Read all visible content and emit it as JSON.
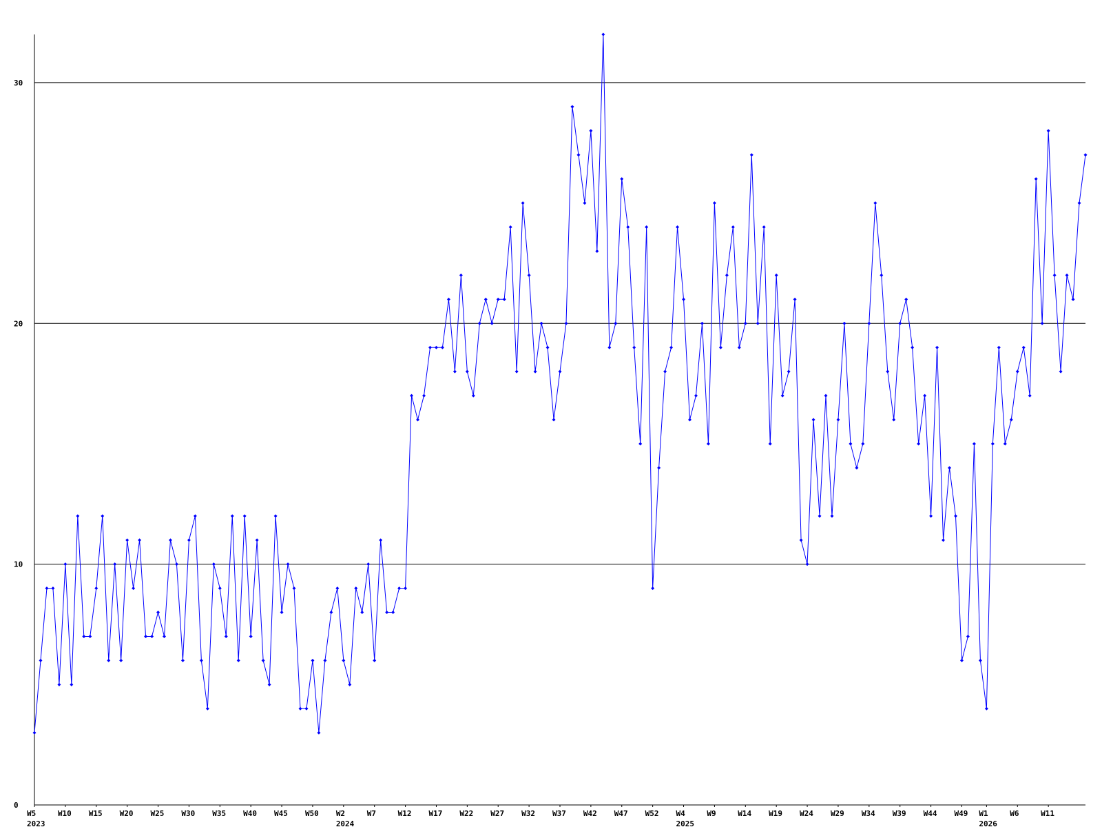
{
  "chart_data": {
    "type": "line",
    "title": "",
    "xlabel": "",
    "ylabel": "",
    "ylim": [
      0,
      32
    ],
    "y_ticks": [
      0,
      10,
      20,
      30
    ],
    "grid": "horizontal lines at 10, 20, 30",
    "colors": {
      "series": "#0000ff",
      "grid": "#000000",
      "axis": "#000000"
    },
    "x_tick_labels": [
      {
        "index": 0,
        "label": "W5",
        "year": "2023"
      },
      {
        "index": 5,
        "label": "W10"
      },
      {
        "index": 10,
        "label": "W15"
      },
      {
        "index": 15,
        "label": "W20"
      },
      {
        "index": 20,
        "label": "W25"
      },
      {
        "index": 25,
        "label": "W30"
      },
      {
        "index": 30,
        "label": "W35"
      },
      {
        "index": 35,
        "label": "W40"
      },
      {
        "index": 40,
        "label": "W45"
      },
      {
        "index": 45,
        "label": "W50"
      },
      {
        "index": 50,
        "label": "W2",
        "year": "2024"
      },
      {
        "index": 55,
        "label": "W7"
      },
      {
        "index": 60,
        "label": "W12"
      },
      {
        "index": 65,
        "label": "W17"
      },
      {
        "index": 70,
        "label": "W22"
      },
      {
        "index": 75,
        "label": "W27"
      },
      {
        "index": 80,
        "label": "W32"
      },
      {
        "index": 85,
        "label": "W37"
      },
      {
        "index": 90,
        "label": "W42"
      },
      {
        "index": 95,
        "label": "W47"
      },
      {
        "index": 100,
        "label": "W52"
      },
      {
        "index": 105,
        "label": "W4",
        "year": "2025"
      },
      {
        "index": 110,
        "label": "W9"
      },
      {
        "index": 115,
        "label": "W14"
      },
      {
        "index": 120,
        "label": "W19"
      },
      {
        "index": 125,
        "label": "W24"
      },
      {
        "index": 130,
        "label": "W29"
      },
      {
        "index": 135,
        "label": "W34"
      },
      {
        "index": 140,
        "label": "W39"
      },
      {
        "index": 145,
        "label": "W44"
      },
      {
        "index": 150,
        "label": "W49"
      },
      {
        "index": 154,
        "label": "W1",
        "year": "2026"
      },
      {
        "index": 159,
        "label": "W6"
      },
      {
        "index": 164,
        "label": "W11"
      }
    ],
    "series": [
      {
        "values": [
          3,
          6,
          9,
          9,
          5,
          10,
          5,
          12,
          7,
          7,
          9,
          12,
          6,
          10,
          6,
          11,
          9,
          11,
          7,
          7,
          8,
          7,
          11,
          10,
          6,
          11,
          12,
          6,
          4,
          10,
          9,
          7,
          12,
          6,
          12,
          7,
          11,
          6,
          5,
          12,
          8,
          10,
          9,
          4,
          4,
          6,
          3,
          6,
          8,
          9,
          6,
          5,
          9,
          8,
          10,
          6,
          11,
          8,
          8,
          9,
          9,
          17,
          16,
          17,
          19,
          19,
          19,
          21,
          18,
          22,
          18,
          17,
          20,
          21,
          20,
          21,
          21,
          24,
          18,
          25,
          22,
          18,
          20,
          19,
          16,
          18,
          20,
          29,
          27,
          25,
          28,
          23,
          32,
          19,
          20,
          26,
          24,
          19,
          15,
          24,
          9,
          14,
          18,
          19,
          24,
          21,
          16,
          17,
          20,
          15,
          25,
          19,
          22,
          24,
          19,
          20,
          27,
          20,
          24,
          15,
          22,
          17,
          18,
          21,
          11,
          10,
          16,
          12,
          17,
          12,
          16,
          20,
          15,
          14,
          15,
          20,
          25,
          22,
          18,
          16,
          20,
          21,
          19,
          15,
          17,
          12,
          19,
          11,
          14,
          12,
          6,
          7,
          15,
          6,
          4,
          15,
          19,
          15,
          16,
          18,
          19,
          17,
          26,
          20,
          28,
          22,
          18,
          22,
          21,
          25,
          27
        ]
      }
    ]
  }
}
